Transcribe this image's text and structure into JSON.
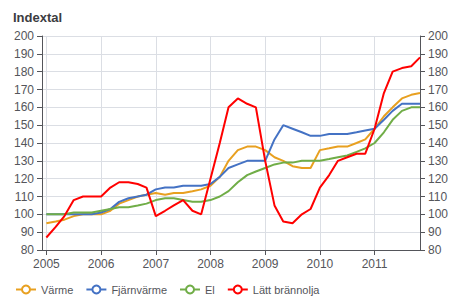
{
  "chart_data": {
    "type": "line",
    "title": "Indextal",
    "x": [
      2005.0,
      2005.17,
      2005.33,
      2005.5,
      2005.67,
      2005.83,
      2006.0,
      2006.17,
      2006.33,
      2006.5,
      2006.67,
      2006.83,
      2007.0,
      2007.17,
      2007.33,
      2007.5,
      2007.67,
      2007.83,
      2008.0,
      2008.17,
      2008.33,
      2008.5,
      2008.67,
      2008.83,
      2009.0,
      2009.17,
      2009.33,
      2009.5,
      2009.67,
      2009.83,
      2010.0,
      2010.17,
      2010.33,
      2010.5,
      2010.67,
      2010.83,
      2011.0,
      2011.17,
      2011.33,
      2011.5,
      2011.67,
      2011.83
    ],
    "series": [
      {
        "name": "Värme",
        "color": "#E8A020",
        "values": [
          95,
          96,
          97,
          99,
          100,
          100,
          100,
          102,
          106,
          108,
          110,
          111,
          112,
          111,
          112,
          112,
          113,
          114,
          116,
          121,
          130,
          136,
          138,
          138,
          136,
          132,
          130,
          127,
          126,
          126,
          136,
          137,
          138,
          138,
          140,
          142,
          148,
          155,
          160,
          165,
          167,
          168
        ]
      },
      {
        "name": "Fjärnvärme",
        "color": "#4472C4",
        "values": [
          100,
          100,
          100,
          100,
          100,
          100,
          101,
          103,
          107,
          109,
          110,
          111,
          114,
          115,
          115,
          116,
          116,
          116,
          117,
          121,
          126,
          128,
          130,
          130,
          130,
          142,
          150,
          148,
          146,
          144,
          144,
          145,
          145,
          145,
          146,
          147,
          148,
          153,
          158,
          162,
          162,
          162
        ]
      },
      {
        "name": "El",
        "color": "#70AD47",
        "values": [
          100,
          100,
          100,
          101,
          101,
          101,
          102,
          103,
          104,
          104,
          105,
          106,
          108,
          109,
          109,
          108,
          107,
          107,
          108,
          110,
          113,
          118,
          122,
          124,
          126,
          128,
          129,
          129,
          130,
          130,
          130,
          131,
          132,
          133,
          135,
          137,
          140,
          146,
          153,
          158,
          160,
          160
        ]
      },
      {
        "name": "Lätt brännolja",
        "color": "#FF0000",
        "values": [
          87,
          93,
          99,
          108,
          110,
          110,
          110,
          115,
          118,
          118,
          117,
          115,
          99,
          102,
          105,
          108,
          102,
          100,
          120,
          140,
          160,
          165,
          162,
          160,
          130,
          105,
          96,
          95,
          100,
          103,
          115,
          122,
          130,
          132,
          134,
          134,
          148,
          168,
          180,
          182,
          183,
          188
        ]
      }
    ],
    "xlim": [
      2004.92,
      2011.83
    ],
    "xticks": [
      2005,
      2006,
      2007,
      2008,
      2009,
      2010,
      2011
    ],
    "ylim": [
      80,
      200
    ],
    "yticks": [
      80,
      90,
      100,
      110,
      120,
      130,
      140,
      150,
      160,
      170,
      180,
      190,
      200
    ],
    "y2lim": [
      80,
      200
    ],
    "y2ticks": [
      80,
      90,
      100,
      110,
      120,
      130,
      140,
      150,
      160,
      170,
      180,
      190,
      200
    ],
    "grid": true,
    "legend": "lower left"
  }
}
